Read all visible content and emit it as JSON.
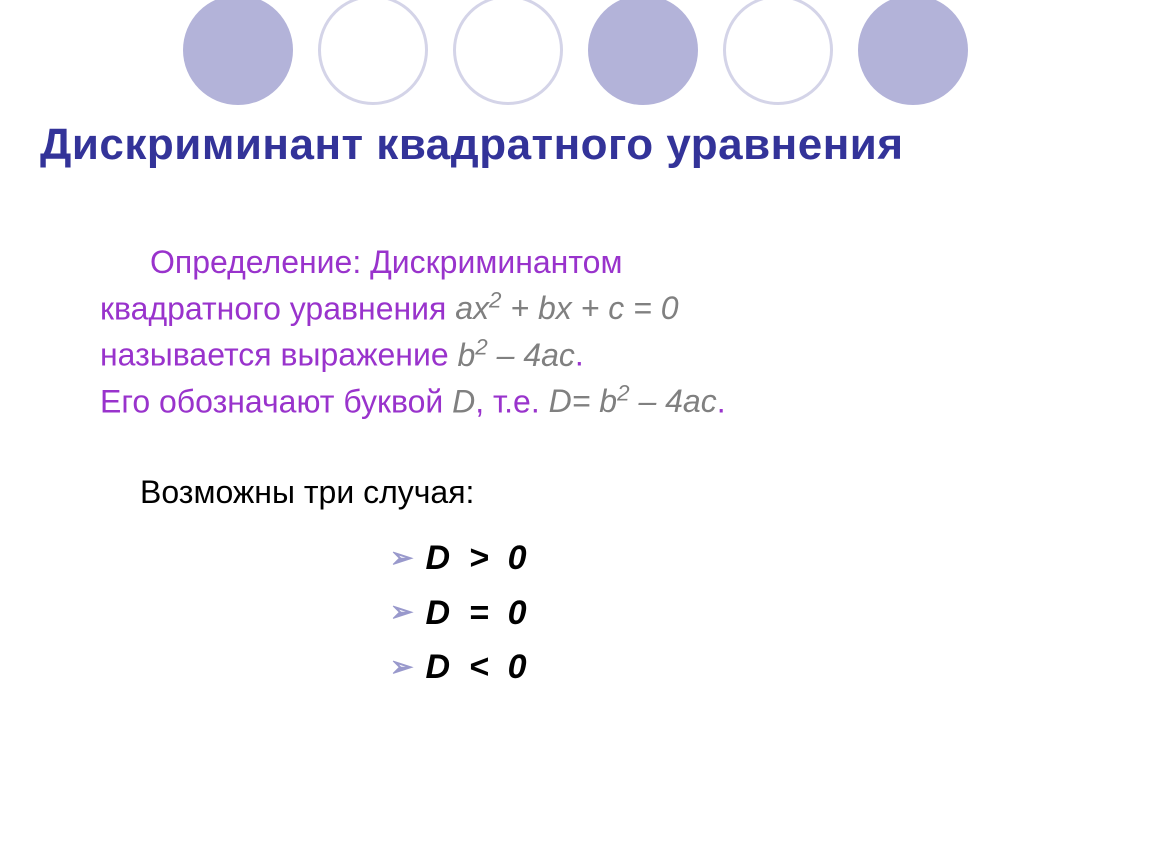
{
  "title": "Дискриминант квадратного уравнения",
  "circles": [
    {
      "type": "filled",
      "color": "#b3b3d9"
    },
    {
      "type": "outlined",
      "color": "#d4d4e8"
    },
    {
      "type": "outlined",
      "color": "#d4d4e8"
    },
    {
      "type": "filled",
      "color": "#b3b3d9"
    },
    {
      "type": "outlined",
      "color": "#d4d4e8"
    },
    {
      "type": "filled",
      "color": "#b3b3d9"
    }
  ],
  "definition": {
    "label": "Определение:",
    "line1_part1": " Дискриминантом",
    "line2_part1": "квадратного уравнения ",
    "line2_formula": "ax",
    "line2_sup1": "2",
    "line2_part2": " + bx + c = 0",
    "line3_part1": "называется выражение ",
    "line3_formula1": "b",
    "line3_sup1": "2",
    "line3_part2": " – 4ac",
    "line3_dot": ".",
    "line4_part1": "Его обозначают буквой ",
    "line4_D": "D",
    "line4_part2": ", т.е. ",
    "line4_formula": "D= b",
    "line4_sup": "2",
    "line4_part3": " – 4ac",
    "line4_dot": "."
  },
  "cases_intro": "Возможны три случая:",
  "cases": [
    {
      "text": "D  >  0"
    },
    {
      "text": "D  =  0"
    },
    {
      "text": "D  <  0"
    }
  ],
  "colors": {
    "title": "#333399",
    "highlight": "#9933cc",
    "gray": "#808080",
    "circle_filled": "#b3b3d9",
    "circle_outlined": "#d4d4e8",
    "bullet": "#9999cc"
  },
  "fonts": {
    "title_size": 44,
    "body_size": 32,
    "case_size": 34
  }
}
